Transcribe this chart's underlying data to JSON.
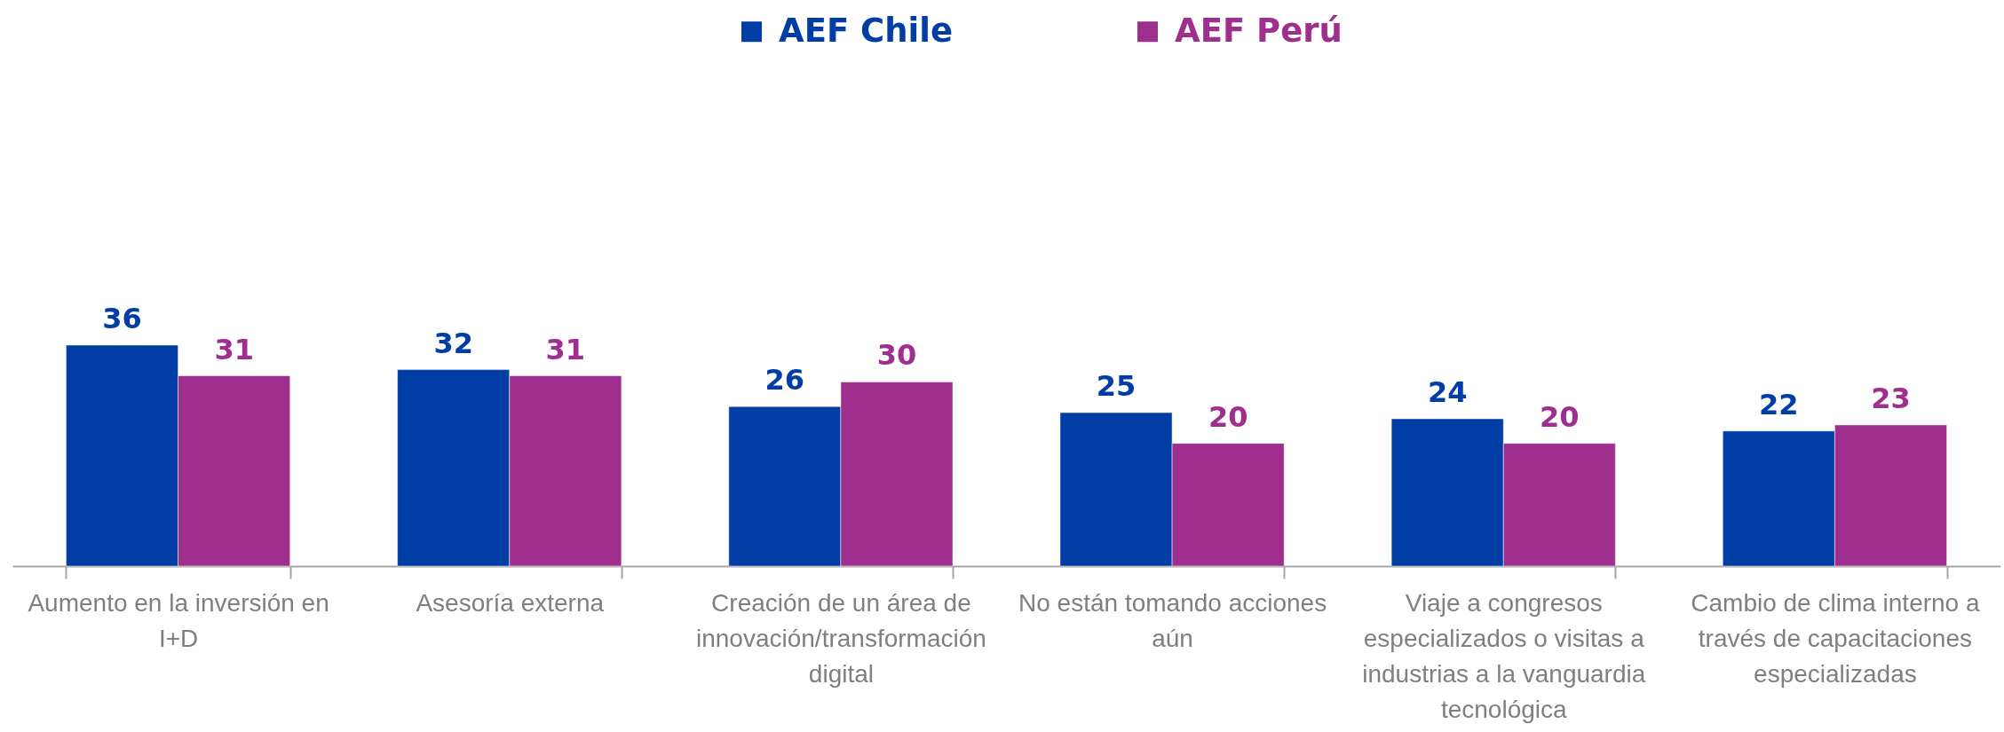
{
  "chart_data": {
    "type": "bar",
    "categories": [
      "Aumento en la inversión en I+D",
      "Asesoría externa",
      "Creación de un área de innovación/transformación digital",
      "No están tomando acciones aún",
      "Viaje a congresos especializados o visitas a industrias a la vanguardia tecnológica",
      "Cambio de clima interno a través de capacitaciones especializadas"
    ],
    "series": [
      {
        "name": "AEF Chile",
        "color": "#003da5",
        "values": [
          36,
          32,
          26,
          25,
          24,
          22
        ]
      },
      {
        "name": "AEF Perú",
        "color": "#9e2f8f",
        "values": [
          31,
          31,
          30,
          20,
          20,
          23
        ]
      }
    ],
    "data_labels": true,
    "legend": "top"
  }
}
